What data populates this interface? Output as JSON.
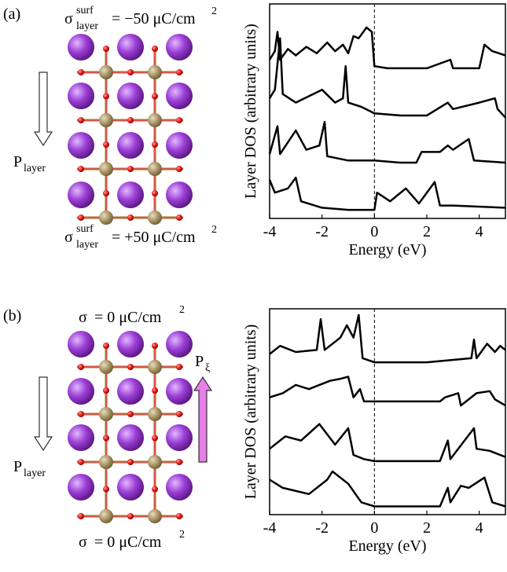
{
  "chart_data": [
    {
      "type": "line",
      "panel_label": "(a)",
      "top_label": {
        "symbol": "σ",
        "sup": "surf",
        "sub": "layer",
        "rest": "= −50 μC/cm",
        "exp": "2"
      },
      "bottom_label": {
        "symbol": "σ",
        "sup": "surf",
        "sub": "layer",
        "rest": "= +50 μC/cm",
        "exp": "2"
      },
      "polarization_label": {
        "symbol": "P",
        "sub": "layer"
      },
      "x_label": "Energy (eV)",
      "y_label": "Layer DOS (arbitrary  units)",
      "xlim": [
        -4,
        5
      ],
      "xticks": [
        -4,
        -2,
        0,
        2,
        4
      ],
      "ylim": [
        0,
        10
      ],
      "vline": 0,
      "series": [
        {
          "color": "#000000",
          "x": [
            -4,
            -3.8,
            -3.7,
            -3.6,
            -3.3,
            -3,
            -2.6,
            -2.2,
            -1.8,
            -1.5,
            -1.2,
            -1,
            -0.8,
            -0.6,
            -0.3,
            -0.1,
            0,
            0.5,
            2,
            2.9,
            3,
            4,
            4.2,
            4.5,
            5
          ],
          "values": [
            7.4,
            7.8,
            8.7,
            7.4,
            7.9,
            7.6,
            8.0,
            7.7,
            8.2,
            7.8,
            8.1,
            7.7,
            8.5,
            8.4,
            8.9,
            8.7,
            7.1,
            7.0,
            7.0,
            7.4,
            7.0,
            7.0,
            8.1,
            7.8,
            7.6
          ]
        },
        {
          "color": "#000000",
          "x": [
            -4,
            -3.8,
            -3.6,
            -3.5,
            -3,
            -2,
            -1.5,
            -1.2,
            -1.1,
            -1,
            -0.5,
            0,
            1,
            2,
            2.8,
            3,
            4,
            4.6,
            4.7,
            5
          ],
          "values": [
            5.6,
            6.0,
            8.4,
            5.8,
            5.4,
            6.0,
            5.4,
            5.6,
            7.1,
            5.4,
            5.2,
            4.9,
            4.8,
            4.8,
            5.4,
            5.1,
            5.4,
            5.6,
            5.1,
            4.7
          ]
        },
        {
          "color": "#000000",
          "x": [
            -4,
            -3.7,
            -3.6,
            -3,
            -2.6,
            -2.1,
            -1.9,
            -1.8,
            -1,
            0,
            1,
            1.6,
            1.8,
            2.5,
            2.8,
            3,
            3.6,
            3.8,
            5
          ],
          "values": [
            3.0,
            4.3,
            3.0,
            4.1,
            3.2,
            3.4,
            4.5,
            2.9,
            2.7,
            2.7,
            2.6,
            2.6,
            3.1,
            3.1,
            3.4,
            3.2,
            3.7,
            2.7,
            2.6
          ]
        },
        {
          "color": "#000000",
          "x": [
            -4,
            -3.8,
            -3.3,
            -3,
            -2.8,
            -2,
            -1,
            0,
            0.1,
            0.6,
            1.2,
            1.7,
            2.3,
            2.5,
            3,
            5
          ],
          "values": [
            1.8,
            1.2,
            1.4,
            1.9,
            0.8,
            0.5,
            0.4,
            0.4,
            1.2,
            0.8,
            1.4,
            0.7,
            1.7,
            0.6,
            0.6,
            0.5
          ]
        }
      ]
    },
    {
      "type": "line",
      "panel_label": "(b)",
      "top_label": {
        "symbol": "σ",
        "rest": "= 0 μC/cm",
        "exp": "2"
      },
      "bottom_label": {
        "symbol": "σ",
        "rest": "= 0 μC/cm",
        "exp": "2"
      },
      "polarization_label": {
        "symbol": "P",
        "sub": "layer"
      },
      "xi_label": {
        "symbol": "P",
        "sub": "ξ"
      },
      "x_label": "Energy (eV)",
      "y_label": "Layer DOS (arbitrary units)",
      "xlim": [
        -4,
        5
      ],
      "xticks": [
        -4,
        -2,
        0,
        2,
        4
      ],
      "ylim": [
        0,
        10
      ],
      "vline": 0,
      "series": [
        {
          "color": "#000000",
          "x": [
            -4,
            -3.6,
            -3,
            -2.2,
            -2.05,
            -1.9,
            -1.3,
            -1.05,
            -0.8,
            -0.6,
            -0.45,
            0,
            2,
            3.7,
            3.8,
            3.9,
            4.3,
            4.6,
            4.8,
            5
          ],
          "values": [
            7.8,
            8.2,
            7.9,
            8.0,
            9.5,
            8.0,
            8.6,
            9.2,
            8.6,
            9.7,
            7.6,
            7.4,
            7.4,
            7.6,
            8.5,
            7.6,
            8.3,
            7.9,
            8.2,
            8.0
          ]
        },
        {
          "color": "#000000",
          "x": [
            -4,
            -3.5,
            -3,
            -2.5,
            -1.7,
            -1.3,
            -1,
            -0.8,
            -0.55,
            -0.4,
            0,
            2.5,
            2.7,
            3.2,
            3.3,
            3.9,
            4.4,
            4.6,
            5
          ],
          "values": [
            5.7,
            5.9,
            6.3,
            6.1,
            6.5,
            6.6,
            6.7,
            5.7,
            6.1,
            5.5,
            5.5,
            5.5,
            5.7,
            5.9,
            5.3,
            5.9,
            6.0,
            5.6,
            5.3
          ]
        },
        {
          "color": "#000000",
          "x": [
            -4,
            -3.4,
            -2.8,
            -2.1,
            -1.5,
            -1,
            -0.8,
            -0.4,
            0,
            2.5,
            2.8,
            2.9,
            3.8,
            3.9,
            4.4,
            5
          ],
          "values": [
            3.2,
            3.8,
            3.6,
            4.4,
            3.4,
            4.2,
            2.9,
            2.7,
            2.6,
            2.6,
            3.6,
            2.7,
            4.2,
            3.2,
            3.1,
            2.8
          ]
        },
        {
          "color": "#000000",
          "x": [
            -4,
            -3.5,
            -2.5,
            -1.8,
            -1.6,
            -1,
            -0.5,
            0,
            2.5,
            2.8,
            2.9,
            3.3,
            3.6,
            4.2,
            4.5,
            5
          ],
          "values": [
            1.7,
            1.3,
            1.0,
            1.7,
            2.1,
            1.5,
            0.6,
            0.4,
            0.4,
            1.3,
            0.6,
            1.4,
            1.3,
            1.8,
            0.6,
            0.4
          ]
        }
      ]
    }
  ]
}
